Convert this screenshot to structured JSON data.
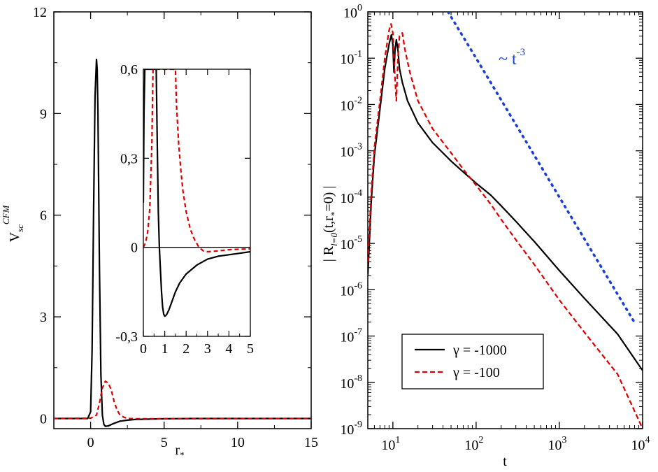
{
  "chart_data": [
    {
      "id": "left",
      "type": "line",
      "title": "",
      "xlabel": "r",
      "xlabel_sub": "*",
      "ylabel": "V",
      "ylabel_sub": "sc",
      "ylabel_sup": "CFM",
      "xlim": [
        -2.5,
        15
      ],
      "ylim": [
        -0.3,
        12
      ],
      "xticks": [
        0,
        5,
        10,
        15
      ],
      "xtick_labels": [
        "0",
        "5",
        "10",
        "15"
      ],
      "yticks": [
        0,
        3,
        6,
        9,
        12
      ],
      "ytick_labels": [
        "0",
        "3",
        "6",
        "9",
        "12"
      ],
      "series": [
        {
          "name": "γ = -1000",
          "color": "#000000",
          "dash": "",
          "x": [
            -2.5,
            -0.2,
            0.0,
            0.1,
            0.2,
            0.3,
            0.4,
            0.45,
            0.5,
            0.6,
            0.7,
            0.8,
            0.9,
            1.0,
            1.2,
            1.5,
            2.0,
            2.5,
            3.0,
            4.0,
            5.0,
            7.0,
            15.0
          ],
          "y": [
            0.0,
            0.0,
            0.2,
            2.0,
            6.0,
            9.5,
            10.6,
            10.3,
            9.0,
            4.5,
            1.3,
            0.1,
            -0.17,
            -0.23,
            -0.22,
            -0.16,
            -0.08,
            -0.05,
            -0.03,
            -0.02,
            -0.01,
            0.0,
            0.0
          ]
        },
        {
          "name": "γ = -100",
          "color": "#dd0000",
          "dash": "6,4",
          "x": [
            -2.5,
            0.0,
            0.4,
            0.6,
            0.8,
            1.0,
            1.2,
            1.4,
            1.6,
            1.8,
            2.0,
            2.3,
            2.6,
            3.0,
            15.0
          ],
          "y": [
            0.0,
            0.01,
            0.1,
            0.45,
            0.9,
            1.1,
            1.05,
            0.85,
            0.5,
            0.25,
            0.1,
            0.03,
            0.0,
            -0.01,
            0.0
          ]
        }
      ],
      "inset": {
        "xlim": [
          0,
          5
        ],
        "ylim": [
          -0.3,
          0.6
        ],
        "xticks": [
          0,
          1,
          2,
          3,
          4,
          5
        ],
        "xtick_labels": [
          "0",
          "1",
          "2",
          "3",
          "4",
          "5"
        ],
        "yticks": [
          -0.3,
          0,
          0.3,
          0.6
        ],
        "ytick_labels": [
          "-0,3",
          "0",
          "0,3",
          "0,6"
        ],
        "series": [
          {
            "name": "γ = -1000",
            "color": "#000000",
            "dash": "",
            "x": [
              0.0,
              0.03,
              0.07,
              0.6,
              0.65,
              0.7,
              0.75,
              0.8,
              0.85,
              0.9,
              0.95,
              1.0,
              1.05,
              1.1,
              1.2,
              1.3,
              1.5,
              1.7,
              2.0,
              2.5,
              3.0,
              3.5,
              4.0,
              4.5,
              5.0
            ],
            "y": [
              0.15,
              0.45,
              0.6,
              0.6,
              0.35,
              0.12,
              0.0,
              -0.08,
              -0.15,
              -0.2,
              -0.225,
              -0.232,
              -0.23,
              -0.225,
              -0.21,
              -0.19,
              -0.15,
              -0.12,
              -0.09,
              -0.06,
              -0.04,
              -0.03,
              -0.025,
              -0.02,
              -0.015
            ]
          },
          {
            "name": "γ = -100",
            "color": "#dd0000",
            "dash": "6,4",
            "x": [
              0.0,
              0.1,
              0.2,
              0.3,
              0.4,
              0.45,
              1.5,
              1.55,
              1.65,
              1.75,
              1.85,
              2.0,
              2.2,
              2.4,
              2.6,
              2.8,
              3.0,
              3.5,
              4.0,
              5.0
            ],
            "y": [
              0.0,
              0.015,
              0.05,
              0.13,
              0.35,
              0.6,
              0.6,
              0.48,
              0.35,
              0.26,
              0.19,
              0.12,
              0.06,
              0.025,
              0.0,
              -0.012,
              -0.015,
              -0.012,
              -0.008,
              -0.005
            ]
          },
          {
            "name": "zero",
            "color": "#000000",
            "dash": "",
            "x": [
              0,
              5
            ],
            "y": [
              0,
              0
            ]
          }
        ]
      }
    },
    {
      "id": "right",
      "type": "line",
      "xscale": "log",
      "yscale": "log",
      "title": "",
      "xlabel": "t",
      "ylabel_prefix": "| R",
      "ylabel_sub": "l=0",
      "ylabel_mid": "(t,r",
      "ylabel_sub2": "*",
      "ylabel_suffix": "=0) |",
      "xlim": [
        5,
        10000
      ],
      "ylim": [
        1e-09,
        1
      ],
      "xtick_base": [
        "10",
        "10",
        "10",
        "10"
      ],
      "xtick_exp": [
        "1",
        "2",
        "3",
        "4"
      ],
      "xtick_vals": [
        10,
        100,
        1000,
        10000
      ],
      "ytick_base": [
        "10",
        "10",
        "10",
        "10",
        "10",
        "10",
        "10",
        "10",
        "10",
        "10"
      ],
      "ytick_exp": [
        "-9",
        "-8",
        "-7",
        "-6",
        "-5",
        "-4",
        "-3",
        "-2",
        "-1",
        "0"
      ],
      "ytick_vals": [
        1e-09,
        1e-08,
        1e-07,
        1e-06,
        1e-05,
        0.0001,
        0.001,
        0.01,
        0.1,
        1
      ],
      "annotation": {
        "text_base": "~ t",
        "text_exp": "-3",
        "color": "#1a3fd6"
      },
      "legend": {
        "position": "bottom-left"
      },
      "series": [
        {
          "name": "γ = -1000",
          "color": "#000000",
          "dash": "",
          "x": [
            5,
            5.5,
            6,
            7,
            8,
            9,
            9.6,
            10,
            10.3,
            10.6,
            11,
            11.5,
            12,
            13,
            15,
            20,
            30,
            50,
            70,
            100,
            150,
            200,
            300,
            500,
            1000,
            2000,
            5000,
            10000
          ],
          "y": [
            2e-06,
            8e-05,
            0.0008,
            0.008,
            0.06,
            0.2,
            0.32,
            0.2,
            0.05,
            0.15,
            0.25,
            0.15,
            0.06,
            0.03,
            0.012,
            0.004,
            0.0015,
            0.0006,
            0.00035,
            0.0002,
            0.00011,
            6.5e-05,
            3e-05,
            1.1e-05,
            2.6e-06,
            6.5e-07,
            1.1e-07,
            1.8e-08
          ]
        },
        {
          "name": "γ = -100",
          "color": "#dd0000",
          "dash": "7,4",
          "x": [
            5,
            5.5,
            6,
            7,
            8,
            9,
            9.5,
            10,
            10.5,
            11,
            11.5,
            12,
            13,
            14,
            16,
            20,
            30,
            50,
            70,
            100,
            150,
            200,
            300,
            500,
            1000,
            2000,
            5000,
            10000
          ],
          "y": [
            4e-06,
            0.00012,
            0.0012,
            0.012,
            0.1,
            0.4,
            0.55,
            0.35,
            0.05,
            0.012,
            0.1,
            0.3,
            0.35,
            0.15,
            0.05,
            0.012,
            0.003,
            0.0009,
            0.0004,
            0.00018,
            7e-05,
            3.3e-05,
            1.2e-05,
            3.5e-06,
            6e-07,
            1.2e-07,
            1.5e-08,
            1e-09
          ]
        },
        {
          "name": "t^-3",
          "color": "#1a3fd6",
          "dash": "2,7",
          "x": [
            46,
            100,
            1000,
            8000
          ],
          "y": [
            1,
            0.1,
            0.0001,
            1.95e-07
          ]
        }
      ]
    }
  ]
}
